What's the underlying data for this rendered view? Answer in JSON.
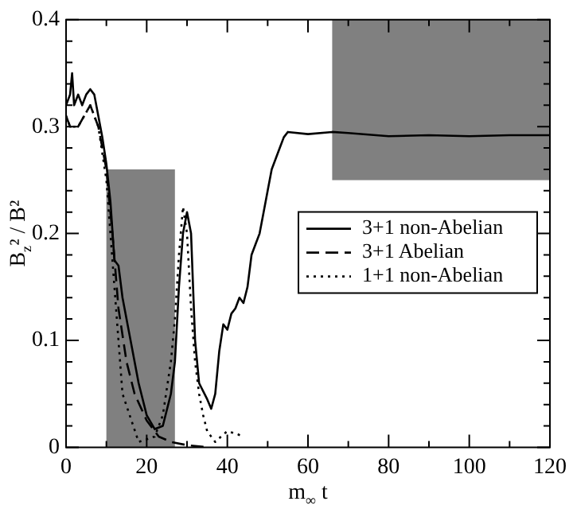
{
  "chart_data": {
    "type": "line",
    "xlabel": "m$_{∞}$ t",
    "ylabel": "B$_{z}$² / B²",
    "xlim": [
      0,
      120
    ],
    "ylim": [
      0,
      0.4
    ],
    "xticks": [
      0,
      {
        "value": 10,
        "label": null
      },
      20,
      {
        "value": 30,
        "label": null
      },
      40,
      {
        "value": 50,
        "label": null
      },
      60,
      {
        "value": 70,
        "label": null
      },
      80,
      {
        "value": 90,
        "label": null
      },
      100,
      {
        "value": 110,
        "label": null
      },
      120
    ],
    "yticks": [
      0,
      {
        "value": 0.02,
        "label": null
      },
      {
        "value": 0.04,
        "label": null
      },
      {
        "value": 0.06,
        "label": null
      },
      {
        "value": 0.08,
        "label": null
      },
      0.1,
      {
        "value": 0.12,
        "label": null
      },
      {
        "value": 0.14,
        "label": null
      },
      {
        "value": 0.16,
        "label": null
      },
      {
        "value": 0.18,
        "label": null
      },
      0.2,
      {
        "value": 0.22,
        "label": null
      },
      {
        "value": 0.24,
        "label": null
      },
      {
        "value": 0.26,
        "label": null
      },
      {
        "value": 0.28,
        "label": null
      },
      0.3,
      {
        "value": 0.32,
        "label": null
      },
      {
        "value": 0.34,
        "label": null
      },
      {
        "value": 0.36,
        "label": null
      },
      {
        "value": 0.38,
        "label": null
      },
      0.4
    ],
    "grid": false,
    "legend": "right",
    "marker": "none",
    "series": [
      {
        "type": "histogram",
        "color": "#808080",
        "bins": [
          10,
          27,
          66,
          120
        ],
        "values": [
          0.26,
          null,
          0.15
        ],
        "base": [
          0,
          null,
          0.25
        ]
      },
      {
        "name": "3+1 non-Abelian",
        "color": "#000000",
        "line_style": "solid",
        "x": [
          0,
          1,
          1.5,
          2,
          3,
          4,
          5,
          6,
          7,
          8,
          9,
          10,
          11,
          12,
          13,
          14,
          16,
          18,
          20,
          22,
          24,
          26,
          27,
          28,
          29,
          30,
          31,
          32,
          33,
          35,
          36,
          37,
          38,
          39,
          40,
          41,
          42,
          43,
          44,
          45,
          46,
          47,
          48,
          49,
          50,
          51,
          52,
          53,
          54,
          55,
          60,
          66,
          70,
          80,
          90,
          100,
          110,
          120
        ],
        "values": [
          0.32,
          0.33,
          0.35,
          0.32,
          0.33,
          0.32,
          0.33,
          0.335,
          0.33,
          0.31,
          0.29,
          0.265,
          0.23,
          0.175,
          0.17,
          0.14,
          0.1,
          0.06,
          0.03,
          0.017,
          0.02,
          0.05,
          0.08,
          0.15,
          0.2,
          0.22,
          0.2,
          0.1,
          0.06,
          0.045,
          0.036,
          0.05,
          0.09,
          0.115,
          0.11,
          0.125,
          0.13,
          0.14,
          0.135,
          0.15,
          0.18,
          0.19,
          0.2,
          0.22,
          0.24,
          0.26,
          0.27,
          0.28,
          0.29,
          0.295,
          0.293,
          0.295,
          0.294,
          0.291,
          0.292,
          0.291,
          0.292,
          0.292
        ]
      },
      {
        "name": "3+1 Abelian",
        "color": "#000000",
        "line_style": "dashed",
        "x": [
          0,
          1,
          3,
          6,
          8,
          10,
          11.5,
          13,
          15,
          17,
          20,
          23,
          26,
          30,
          35
        ],
        "values": [
          0.31,
          0.3,
          0.3,
          0.32,
          0.3,
          0.26,
          0.2,
          0.13,
          0.08,
          0.05,
          0.025,
          0.01,
          0.005,
          0.002,
          0
        ]
      },
      {
        "name": "1+1 non-Abelian",
        "color": "#000000",
        "line_style": "dotted",
        "x": [
          0,
          1,
          3,
          6,
          8,
          10,
          12,
          14,
          18,
          22,
          24,
          26,
          27,
          28,
          29,
          30,
          31,
          32,
          33,
          34,
          35,
          37,
          39,
          40,
          42,
          44
        ],
        "values": [
          0.31,
          0.3,
          0.3,
          0.32,
          0.3,
          0.25,
          0.15,
          0.05,
          0.005,
          0.01,
          0.03,
          0.08,
          0.12,
          0.18,
          0.225,
          0.2,
          0.13,
          0.08,
          0.05,
          0.03,
          0.015,
          0.005,
          0.012,
          0.015,
          0.013,
          0.01
        ]
      }
    ]
  }
}
